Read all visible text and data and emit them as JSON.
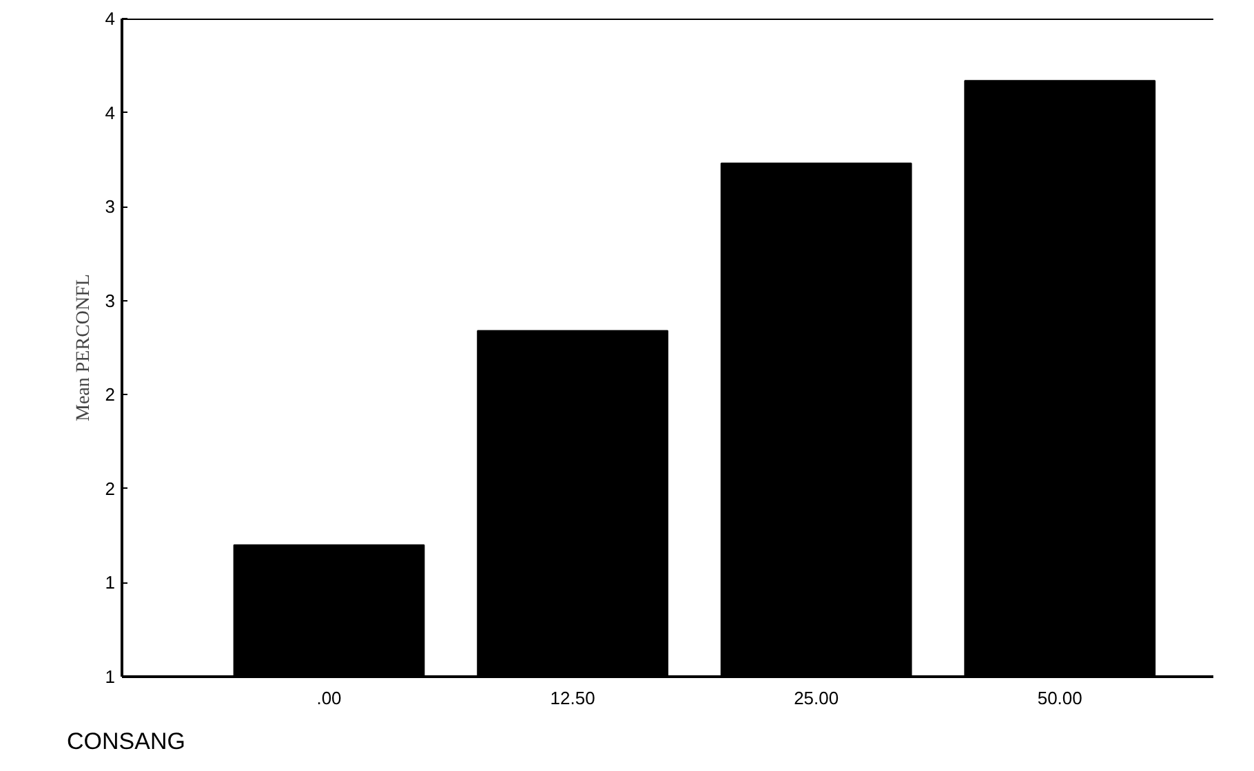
{
  "chart_data": {
    "type": "bar",
    "xlabel": "CONSANG",
    "ylabel": "Mean PERCONFL",
    "categories": [
      ".00",
      "12.50",
      "25.00",
      "50.00"
    ],
    "values": [
      1.2,
      2.34,
      3.23,
      3.67
    ],
    "color": "#000000",
    "ylim": [
      0.5,
      4.0
    ],
    "yticks": [
      {
        "value": 0.5,
        "label": "1"
      },
      {
        "value": 1.0,
        "label": "1"
      },
      {
        "value": 1.5,
        "label": "2"
      },
      {
        "value": 2.0,
        "label": "2"
      },
      {
        "value": 2.5,
        "label": "3"
      },
      {
        "value": 3.0,
        "label": "3"
      },
      {
        "value": 3.5,
        "label": "4"
      },
      {
        "value": 4.0,
        "label": "4"
      }
    ],
    "grid": false
  }
}
